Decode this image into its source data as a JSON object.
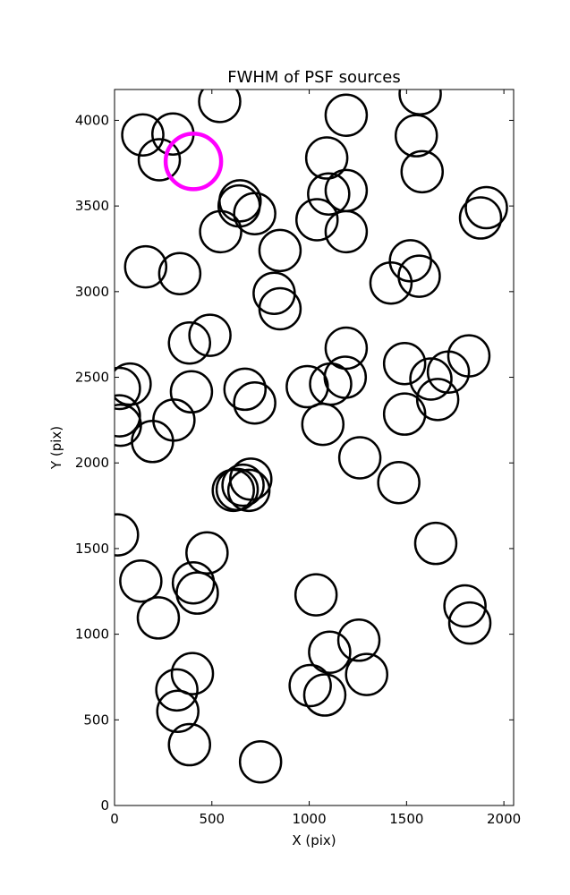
{
  "chart_data": {
    "type": "scatter",
    "title": "FWHM of PSF sources",
    "xlabel": "X (pix)",
    "ylabel": "Y (pix)",
    "xlim": [
      0,
      2050
    ],
    "ylim": [
      0,
      4180
    ],
    "xticks": [
      0,
      500,
      1000,
      1500,
      2000
    ],
    "yticks": [
      0,
      500,
      1000,
      1500,
      2000,
      2500,
      3000,
      3500,
      4000
    ],
    "grid": false,
    "marker": "circle",
    "colors": {
      "default": "#000000",
      "highlight": "#ff00ff"
    },
    "highlight": {
      "x": 405,
      "y": 3760
    },
    "points": [
      [
        540,
        4110
      ],
      [
        1570,
        4155
      ],
      [
        1190,
        4030
      ],
      [
        145,
        3915
      ],
      [
        300,
        3920
      ],
      [
        230,
        3770
      ],
      [
        1550,
        3910
      ],
      [
        1090,
        3780
      ],
      [
        1580,
        3700
      ],
      [
        1190,
        3590
      ],
      [
        1100,
        3570
      ],
      [
        1910,
        3490
      ],
      [
        1880,
        3430
      ],
      [
        645,
        3530
      ],
      [
        640,
        3500
      ],
      [
        720,
        3455
      ],
      [
        1040,
        3420
      ],
      [
        1190,
        3350
      ],
      [
        545,
        3350
      ],
      [
        850,
        3240
      ],
      [
        160,
        3145
      ],
      [
        335,
        3105
      ],
      [
        1520,
        3180
      ],
      [
        1565,
        3090
      ],
      [
        1420,
        3050
      ],
      [
        820,
        2990
      ],
      [
        850,
        2900
      ],
      [
        490,
        2745
      ],
      [
        385,
        2700
      ],
      [
        1190,
        2670
      ],
      [
        1820,
        2625
      ],
      [
        1490,
        2580
      ],
      [
        1715,
        2530
      ],
      [
        1625,
        2490
      ],
      [
        1185,
        2500
      ],
      [
        80,
        2460
      ],
      [
        25,
        2435
      ],
      [
        395,
        2415
      ],
      [
        670,
        2430
      ],
      [
        720,
        2350
      ],
      [
        990,
        2445
      ],
      [
        1110,
        2460
      ],
      [
        1660,
        2370
      ],
      [
        1490,
        2285
      ],
      [
        25,
        2275
      ],
      [
        30,
        2220
      ],
      [
        305,
        2250
      ],
      [
        1070,
        2225
      ],
      [
        195,
        2125
      ],
      [
        1260,
        2030
      ],
      [
        1460,
        1885
      ],
      [
        700,
        1905
      ],
      [
        660,
        1870
      ],
      [
        690,
        1840
      ],
      [
        630,
        1845
      ],
      [
        610,
        1840
      ],
      [
        15,
        1580
      ],
      [
        475,
        1475
      ],
      [
        1650,
        1530
      ],
      [
        135,
        1310
      ],
      [
        405,
        1300
      ],
      [
        425,
        1240
      ],
      [
        1035,
        1230
      ],
      [
        1800,
        1165
      ],
      [
        1825,
        1065
      ],
      [
        225,
        1095
      ],
      [
        1255,
        965
      ],
      [
        1105,
        895
      ],
      [
        400,
        770
      ],
      [
        1295,
        765
      ],
      [
        320,
        675
      ],
      [
        1005,
        700
      ],
      [
        1080,
        645
      ],
      [
        325,
        550
      ],
      [
        385,
        355
      ],
      [
        750,
        255
      ]
    ]
  }
}
